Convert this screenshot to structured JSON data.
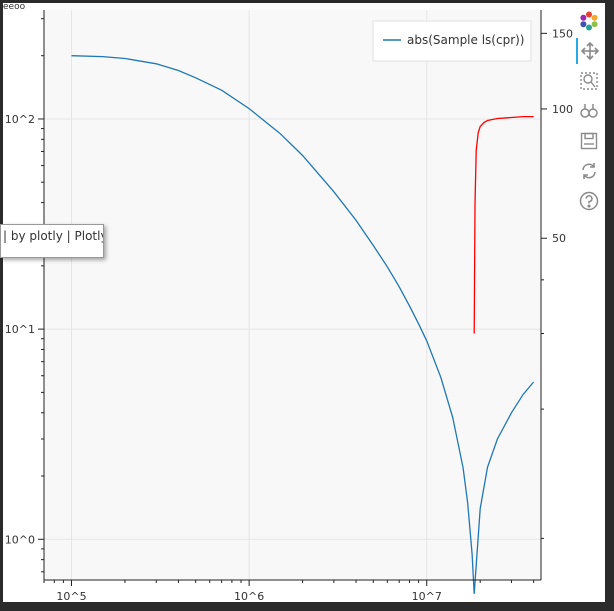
{
  "chart_data": {
    "type": "line",
    "x_scale": "log",
    "y_scale": "log",
    "xlim": [
      70000,
      44000000
    ],
    "ylim": [
      0.64,
      330
    ],
    "right_ylim": [
      8,
      170
    ],
    "x_tick_labels": [
      "10^5",
      "10^6",
      "10^7"
    ],
    "x_tick_values": [
      100000,
      1000000,
      10000000
    ],
    "y_tick_labels": [
      "10^2",
      "10^1",
      "10^0"
    ],
    "y_tick_values": [
      100,
      10,
      1
    ],
    "right_y_tick_labels": [
      "150",
      "100",
      "50"
    ],
    "right_y_tick_values": [
      150,
      100,
      50
    ],
    "grid": true,
    "legend_position": "top-right",
    "series": [
      {
        "name": "abs(Sample ls(cpr))",
        "color": "#1f77b4",
        "axis": "left",
        "x": [
          100000,
          150000,
          200000,
          300000,
          400000,
          500000,
          700000,
          1000000,
          1500000,
          2000000,
          3000000,
          4000000,
          5000000,
          6000000,
          7000000,
          8000000,
          9000000,
          10000000,
          12000000,
          14000000,
          16000000,
          17000000,
          18000000,
          18500000,
          19000000,
          20000000,
          22000000,
          25000000,
          30000000,
          35000000,
          40000000
        ],
        "y": [
          200,
          198,
          194,
          183,
          170,
          157,
          137,
          112,
          85,
          67,
          45,
          33,
          25,
          19.8,
          15.9,
          12.9,
          10.6,
          8.8,
          5.9,
          3.8,
          2.2,
          1.5,
          0.85,
          0.55,
          0.75,
          1.4,
          2.2,
          3.0,
          4.0,
          4.9,
          5.6
        ]
      },
      {
        "name": "",
        "color": "#ff0000",
        "axis": "right",
        "x": [
          18500000,
          18700000,
          19000000,
          19500000,
          20000000,
          21000000,
          22000000,
          25000000,
          30000000,
          35000000,
          40000000
        ],
        "y": [
          30,
          60,
          80,
          88,
          91,
          93,
          94,
          95,
          95.5,
          96,
          96
        ]
      }
    ]
  },
  "corner_label": "eeoo",
  "tooltip_text": "| by plotly | Plotly |",
  "toolbar": {
    "icons": [
      "bokeh-logo-icon",
      "pan-icon",
      "box-zoom-icon",
      "wheel-zoom-icon",
      "save-icon",
      "reset-icon",
      "help-icon"
    ]
  },
  "colors": {
    "plot_background": "#f8f8f8",
    "grid": "#e6e6e6",
    "tool_active": "#26aae1"
  }
}
